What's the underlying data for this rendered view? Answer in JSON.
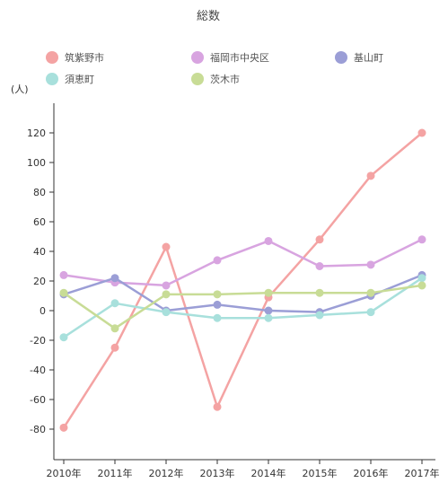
{
  "chart_data": {
    "type": "line",
    "title": "総数",
    "unit_label": "(人)",
    "categories": [
      "2010年",
      "2011年",
      "2012年",
      "2013年",
      "2014年",
      "2015年",
      "2016年",
      "2017年"
    ],
    "ylim": [
      -90,
      130
    ],
    "yticks": [
      120,
      100,
      80,
      60,
      40,
      20,
      0,
      -20,
      -40,
      -60,
      -80
    ],
    "grid": false,
    "legend_position": "top",
    "series": [
      {
        "name": "筑紫野市",
        "color": "#f4a3a3",
        "values": [
          -79,
          -25,
          43,
          -65,
          9,
          48,
          91,
          120
        ]
      },
      {
        "name": "福岡市中央区",
        "color": "#d8a4e0",
        "values": [
          24,
          19,
          17,
          34,
          47,
          30,
          31,
          48
        ]
      },
      {
        "name": "基山町",
        "color": "#9b9ed6",
        "values": [
          11,
          22,
          0,
          4,
          0,
          -1,
          10,
          24
        ]
      },
      {
        "name": "須恵町",
        "color": "#a8e0dc",
        "values": [
          -18,
          5,
          -1,
          -5,
          -5,
          -3,
          -1,
          22
        ]
      },
      {
        "name": "茨木市",
        "color": "#c8dc96",
        "values": [
          12,
          -12,
          11,
          11,
          12,
          12,
          12,
          17
        ]
      }
    ]
  }
}
